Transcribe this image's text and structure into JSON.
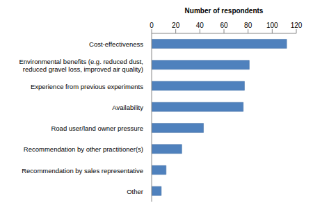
{
  "chart_data": {
    "type": "bar",
    "orientation": "horizontal",
    "x_label": "Number of respondents",
    "categories": [
      "Cost-effectiveness",
      "Environmental benefits (e.g. reduced dust, reduced gravel loss, improved air quality)",
      "Experience from previous experiments",
      "Availability",
      "Road user/land owner pressure",
      "Recommendation by other practitioner(s)",
      "Recommendation by sales representative",
      "Other"
    ],
    "values": [
      112,
      81,
      77,
      76,
      43,
      25,
      12,
      8
    ],
    "color": "#4f81bd",
    "xlim": [
      0,
      120
    ],
    "xticks": [
      0,
      20,
      40,
      60,
      80,
      100,
      120
    ],
    "grid": false
  }
}
